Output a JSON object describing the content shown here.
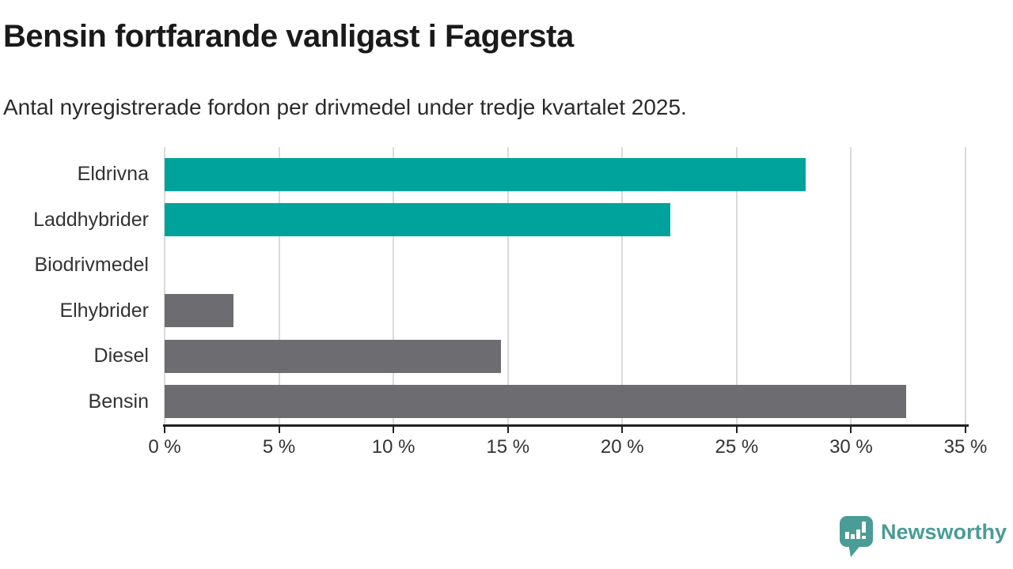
{
  "header": {
    "title": "Bensin fortfarande vanligast i Fagersta",
    "subtitle": "Antal nyregistrerade fordon per drivmedel under tredje kvartalet 2025."
  },
  "chart_data": {
    "type": "bar",
    "orientation": "horizontal",
    "title": "Bensin fortfarande vanligast i Fagersta",
    "subtitle": "Antal nyregistrerade fordon per drivmedel under tredje kvartalet 2025.",
    "categories": [
      "Eldrivna",
      "Laddhybrider",
      "Biodrivmedel",
      "Elhybrider",
      "Diesel",
      "Bensin"
    ],
    "values": [
      28.0,
      22.1,
      0,
      3.0,
      14.7,
      32.4
    ],
    "unit": "%",
    "xlim": [
      0,
      35
    ],
    "x_ticks": [
      0,
      5,
      10,
      15,
      20,
      25,
      30,
      35
    ],
    "x_tick_labels": [
      "0 %",
      "5 %",
      "10 %",
      "15 %",
      "20 %",
      "25 %",
      "30 %",
      "35 %"
    ],
    "bar_colors": [
      "#00a39b",
      "#00a39b",
      "#6c6c71",
      "#6c6c71",
      "#6c6c71",
      "#6c6c71"
    ],
    "grid": "vertical",
    "legend": "none"
  },
  "colors": {
    "teal": "#00a39b",
    "gray": "#6c6c71",
    "gridline": "#dadada",
    "axis": "#222222",
    "brand_teal": "#4a9c96"
  },
  "footer": {
    "brand": "Newsworthy",
    "logo_icon": "speech-bubble-bar-chart-icon"
  }
}
